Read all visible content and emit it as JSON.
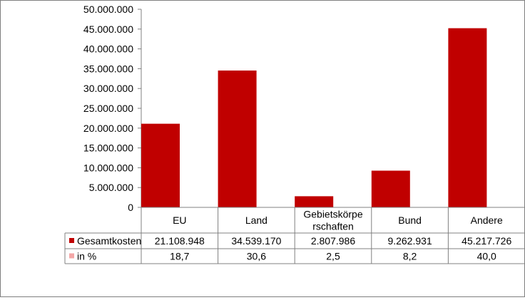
{
  "chart_data": {
    "type": "bar",
    "categories": [
      "EU",
      "Land",
      "Gebietskörpe rschaften",
      "Bund",
      "Andere"
    ],
    "category_lines": [
      [
        "EU"
      ],
      [
        "Land"
      ],
      [
        "Gebietskörpe",
        "rschaften"
      ],
      [
        "Bund"
      ],
      [
        "Andere"
      ]
    ],
    "series": [
      {
        "name": "Gesamtkosten",
        "values": [
          21108948,
          34539170,
          2807986,
          9262931,
          45217726
        ],
        "color": "#c00000"
      },
      {
        "name": "in %",
        "values": [
          18.7,
          30.6,
          2.5,
          8.2,
          40.0
        ],
        "color": "#f4a7a7"
      }
    ],
    "table": {
      "rows": [
        {
          "label": "Gesamtkosten",
          "cells": [
            "21.108.948",
            "34.539.170",
            "2.807.986",
            "9.262.931",
            "45.217.726"
          ]
        },
        {
          "label": "in %",
          "cells": [
            "18,7",
            "30,6",
            "2,5",
            "8,2",
            "40,0"
          ]
        }
      ]
    },
    "ylim": [
      0,
      50000000
    ],
    "yticks": [
      0,
      5000000,
      10000000,
      15000000,
      20000000,
      25000000,
      30000000,
      35000000,
      40000000,
      45000000,
      50000000
    ],
    "ytick_labels": [
      "0",
      "5.000.000",
      "10.000.000",
      "15.000.000",
      "20.000.000",
      "25.000.000",
      "30.000.000",
      "35.000.000",
      "40.000.000",
      "45.000.000",
      "50.000.000"
    ],
    "grid": false,
    "legend": "data-table"
  }
}
